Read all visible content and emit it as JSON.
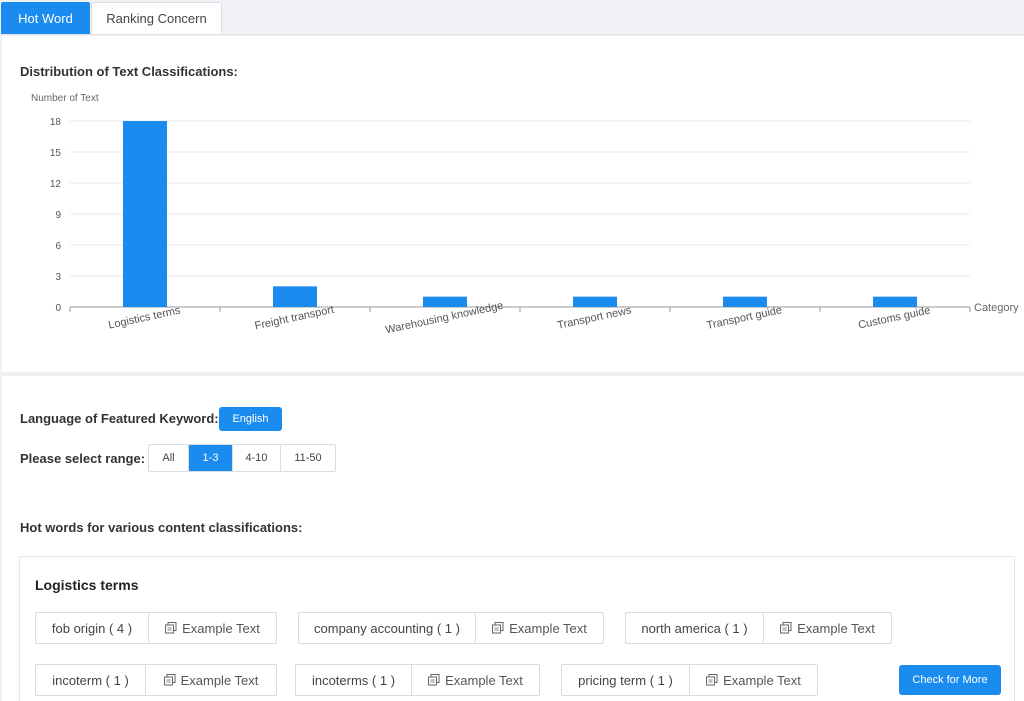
{
  "tabs": [
    {
      "label": "Hot Word",
      "active": true
    },
    {
      "label": "Ranking Concern",
      "active": false
    }
  ],
  "chart_section": {
    "title": "Distribution of Text Classifications:"
  },
  "chart_data": {
    "type": "bar",
    "ylabel": "Number of Text",
    "xlabel": "Category",
    "categories": [
      "Logistics terms",
      "Freight transport",
      "Warehousing knowledge",
      "Transport news",
      "Transport guide",
      "Customs guide"
    ],
    "values": [
      18,
      2,
      1,
      1,
      1,
      1
    ],
    "ylim": [
      0,
      18
    ],
    "yticks": [
      0,
      3,
      6,
      9,
      12,
      15,
      18
    ],
    "grid": true,
    "color": "#1a8cf0"
  },
  "filters": {
    "language_label": "Language of Featured Keyword:",
    "language_value": "English",
    "range_label": "Please select range:",
    "range_options": [
      "All",
      "1-3",
      "4-10",
      "11-50"
    ],
    "range_selected": "1-3"
  },
  "hotwords_section": {
    "title": "Hot words for various content classifications:",
    "card_title": "Logistics terms",
    "example_label": "Example Text",
    "items": [
      {
        "word": "fob origin ( 4 )"
      },
      {
        "word": "company accounting ( 1 )"
      },
      {
        "word": "north america ( 1 )"
      },
      {
        "word": "incoterm ( 1 )"
      },
      {
        "word": "incoterms ( 1 )"
      },
      {
        "word": "pricing term ( 1 )"
      }
    ],
    "more_button": "Check for More"
  },
  "icons": {
    "example": "copy-icon"
  }
}
